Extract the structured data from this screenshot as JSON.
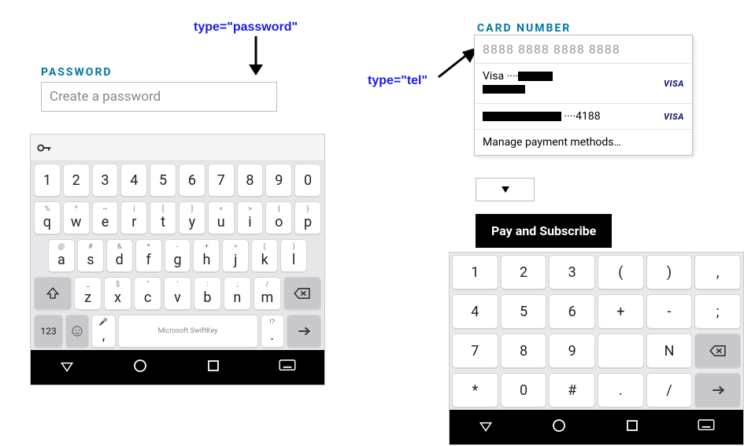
{
  "annotations": {
    "password_type": "type=\"password\"",
    "tel_type": "type=\"tel\""
  },
  "left": {
    "label": "PASSWORD",
    "placeholder": "Create a password"
  },
  "right": {
    "label": "CARD NUMBER",
    "placeholder": "8888 8888 8888 8888",
    "items": [
      {
        "prefix": "Visa ",
        "dots": "····",
        "suffix": ""
      },
      {
        "prefix": "",
        "dots": "····",
        "suffix": "4188"
      }
    ],
    "manage": "Manage payment methods…",
    "pay_button": "Pay and Subscribe",
    "visa_brand": "VISA"
  },
  "qwerty": {
    "row_nums": [
      "1",
      "2",
      "3",
      "4",
      "5",
      "6",
      "7",
      "8",
      "9",
      "0"
    ],
    "row1": [
      {
        "s": "%",
        "m": "q"
      },
      {
        "s": "^",
        "m": "w"
      },
      {
        "s": "~",
        "m": "e"
      },
      {
        "s": "|",
        "m": "r"
      },
      {
        "s": "[",
        "m": "t"
      },
      {
        "s": "]",
        "m": "y"
      },
      {
        "s": "<",
        "m": "u"
      },
      {
        "s": ">",
        "m": "i"
      },
      {
        "s": "{",
        "m": "o"
      },
      {
        "s": "}",
        "m": "p"
      }
    ],
    "row2": [
      {
        "s": "@",
        "m": "a"
      },
      {
        "s": "#",
        "m": "s"
      },
      {
        "s": "&",
        "m": "d"
      },
      {
        "s": "*",
        "m": "f"
      },
      {
        "s": "-",
        "m": "g"
      },
      {
        "s": "+",
        "m": "h"
      },
      {
        "s": "=",
        "m": "j"
      },
      {
        "s": "(",
        "m": "k"
      },
      {
        "s": ")",
        "m": "l"
      }
    ],
    "row3": [
      {
        "s": "_",
        "m": "z"
      },
      {
        "s": "$",
        "m": "x"
      },
      {
        "s": "\"",
        "m": "c"
      },
      {
        "s": "'",
        "m": "v"
      },
      {
        "s": ":",
        "m": "b"
      },
      {
        "s": ";",
        "m": "n"
      },
      {
        "s": "/",
        "m": "m"
      }
    ],
    "mode_key": "123",
    "brand": "Microsoft SwiftKey"
  },
  "numpad": {
    "r1": [
      "1",
      "2",
      "3",
      "(",
      ")",
      ","
    ],
    "r2": [
      "4",
      "5",
      "6",
      "+",
      "-",
      ";"
    ],
    "r3": [
      "7",
      "8",
      "9",
      "",
      "N",
      "⌫"
    ],
    "r4": [
      "*",
      "0",
      "#",
      ".",
      "/",
      "→"
    ]
  },
  "colors": {
    "annotation": "#1a1aee",
    "label": "#0078a0",
    "key_bg": "#ffffff",
    "key_gray": "#c7c7cc",
    "kbd_bg": "#e7e7ea",
    "nav_bg": "#000000",
    "visa": "#1a1f71"
  }
}
